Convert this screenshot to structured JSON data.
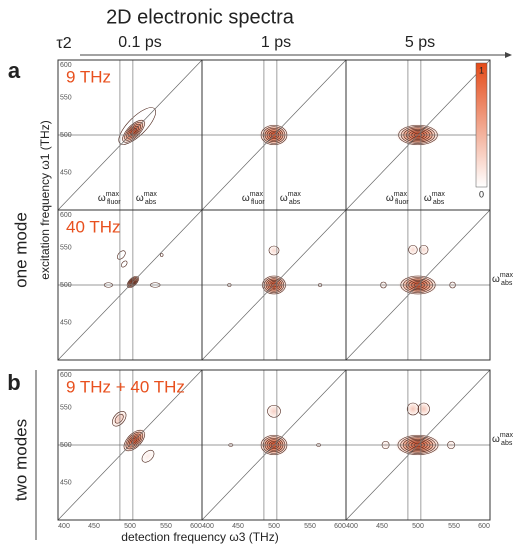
{
  "title": "2D electronic spectra",
  "delay_symbol": "τ2",
  "delays": [
    "0.1 ps",
    "1 ps",
    "5 ps"
  ],
  "rows": [
    {
      "panel": "a",
      "group": "one mode",
      "mode": "9 THz"
    },
    {
      "mode": "40 THz"
    },
    {
      "panel": "b",
      "group": "two modes",
      "mode": "9 THz + 40 THz"
    }
  ],
  "y_axis_label": "excitation frequency ω1 (THz)",
  "x_axis_label": "detection frequency ω3 (THz)",
  "ticks": [
    400,
    450,
    500,
    550,
    600
  ],
  "omega": {
    "symbol": "ω",
    "sup": "max",
    "fluor": "fluor",
    "abs": "abs"
  },
  "colorbar": {
    "max": "1",
    "min": "0"
  }
}
